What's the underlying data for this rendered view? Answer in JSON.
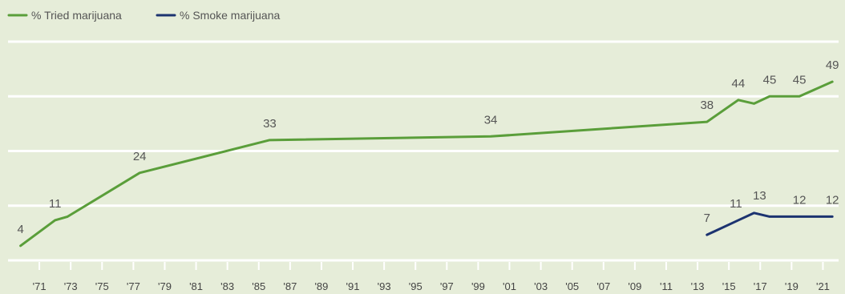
{
  "chart_data": {
    "type": "line",
    "title": "",
    "xlabel": "",
    "ylabel": "",
    "xlim": [
      1969,
      2022
    ],
    "ylim": [
      0,
      60
    ],
    "grid": true,
    "legend_position": "top-left",
    "x_ticks": [
      {
        "year": 1971,
        "label": "'71"
      },
      {
        "year": 1973,
        "label": "'73"
      },
      {
        "year": 1975,
        "label": "'75"
      },
      {
        "year": 1977,
        "label": "'77"
      },
      {
        "year": 1979,
        "label": "'79"
      },
      {
        "year": 1981,
        "label": "'81"
      },
      {
        "year": 1983,
        "label": "'83"
      },
      {
        "year": 1985,
        "label": "'85"
      },
      {
        "year": 1987,
        "label": "'87"
      },
      {
        "year": 1989,
        "label": "'89"
      },
      {
        "year": 1991,
        "label": "'91"
      },
      {
        "year": 1993,
        "label": "'93"
      },
      {
        "year": 1995,
        "label": "'95"
      },
      {
        "year": 1997,
        "label": "'97"
      },
      {
        "year": 1999,
        "label": "'99"
      },
      {
        "year": 2001,
        "label": "'01"
      },
      {
        "year": 2003,
        "label": "'03"
      },
      {
        "year": 2005,
        "label": "'05"
      },
      {
        "year": 2007,
        "label": "'07"
      },
      {
        "year": 2009,
        "label": "'09"
      },
      {
        "year": 2011,
        "label": "'11"
      },
      {
        "year": 2013,
        "label": "'13"
      },
      {
        "year": 2015,
        "label": "'15"
      },
      {
        "year": 2017,
        "label": "'17"
      },
      {
        "year": 2019,
        "label": "'19"
      },
      {
        "year": 2021,
        "label": "'21"
      }
    ],
    "series": [
      {
        "name": "% Tried marijuana",
        "color": "#5a9e3a",
        "points": [
          {
            "x": 1969.8,
            "y": 4,
            "label": "4"
          },
          {
            "x": 1972.0,
            "y": 11,
            "label": "11"
          },
          {
            "x": 1972.8,
            "y": 12
          },
          {
            "x": 1977.4,
            "y": 24,
            "label": "24"
          },
          {
            "x": 1985.7,
            "y": 33,
            "label": "33"
          },
          {
            "x": 1999.8,
            "y": 34,
            "label": "34"
          },
          {
            "x": 2013.6,
            "y": 38,
            "label": "38"
          },
          {
            "x": 2015.6,
            "y": 44,
            "label": "44"
          },
          {
            "x": 2016.6,
            "y": 43
          },
          {
            "x": 2017.6,
            "y": 45,
            "label": "45"
          },
          {
            "x": 2019.5,
            "y": 45,
            "label": "45"
          },
          {
            "x": 2021.6,
            "y": 49,
            "label": "49"
          }
        ]
      },
      {
        "name": "% Smoke marijuana",
        "color": "#1c3370",
        "points": [
          {
            "x": 2013.6,
            "y": 7,
            "label": "7"
          },
          {
            "x": 2015.6,
            "y": 11,
            "label": "11"
          },
          {
            "x": 2016.6,
            "y": 13,
            "label": "13"
          },
          {
            "x": 2017.6,
            "y": 12
          },
          {
            "x": 2019.5,
            "y": 12,
            "label": "12"
          },
          {
            "x": 2021.6,
            "y": 12,
            "label": "12"
          }
        ]
      }
    ]
  }
}
